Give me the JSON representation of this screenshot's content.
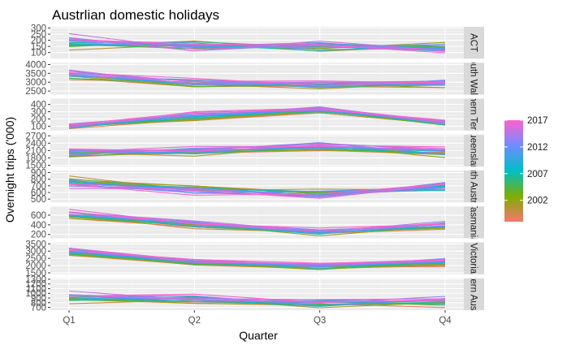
{
  "chart_data": {
    "type": "line",
    "title": "Austrlian domestic holidays",
    "xlabel": "Quarter",
    "ylabel": "Overnight trips ('000)",
    "categories": [
      "Q1",
      "Q2",
      "Q3",
      "Q4"
    ],
    "facet_scales": "free_y",
    "grid": true,
    "legend": {
      "placement": "right",
      "type": "colorbar",
      "ticks": [
        2002,
        2007,
        2012,
        2017
      ],
      "range": [
        1998,
        2017
      ],
      "colors": [
        "#f8766d",
        "#7cae00",
        "#00bfc4",
        "#6f8cff",
        "#ff61cc"
      ]
    },
    "panels": [
      {
        "strip": "ACT",
        "ylim": [
          50,
          310
        ],
        "yticks": [
          100,
          150,
          200,
          250,
          300
        ],
        "base": [
          175,
          155,
          150,
          140
        ],
        "drift": [
          80,
          -20,
          20,
          -30
        ],
        "spread": 40
      },
      {
        "strip": "South Wales",
        "ylim": [
          2300,
          4100
        ],
        "yticks": [
          2500,
          3000,
          3500,
          4000
        ],
        "base": [
          3400,
          2900,
          2850,
          2900
        ],
        "drift": [
          300,
          250,
          200,
          200
        ],
        "spread": 200
      },
      {
        "strip": "Northern Territory",
        "ylim": [
          40,
          480
        ],
        "yticks": [
          100,
          200,
          300,
          400
        ],
        "base": [
          100,
          220,
          320,
          140
        ],
        "drift": [
          20,
          100,
          60,
          40
        ],
        "spread": 30
      },
      {
        "strip": "Queensland",
        "ylim": [
          1450,
          2750
        ],
        "yticks": [
          1500,
          1800,
          2100,
          2400,
          2700
        ],
        "base": [
          2000,
          2050,
          2250,
          2000
        ],
        "drift": [
          150,
          150,
          200,
          250
        ],
        "spread": 150
      },
      {
        "strip": "South Australia",
        "ylim": [
          450,
          930
        ],
        "yticks": [
          500,
          600,
          700,
          800,
          900
        ],
        "base": [
          760,
          650,
          580,
          680
        ],
        "drift": [
          -100,
          -60,
          -60,
          60
        ],
        "spread": 60
      },
      {
        "strip": "Tasmania",
        "ylim": [
          120,
          780
        ],
        "yticks": [
          200,
          400,
          600
        ],
        "base": [
          600,
          400,
          240,
          380
        ],
        "drift": [
          120,
          100,
          60,
          100
        ],
        "spread": 60
      },
      {
        "strip": "Victoria",
        "ylim": [
          1400,
          3600
        ],
        "yticks": [
          1500,
          2000,
          2500,
          3000,
          3500
        ],
        "base": [
          2900,
          2200,
          1900,
          2200
        ],
        "drift": [
          400,
          300,
          300,
          400
        ],
        "spread": 150
      },
      {
        "strip": "Western Australia",
        "ylim": [
          640,
          1320
        ],
        "yticks": [
          700,
          800,
          900,
          1000,
          1100,
          1200,
          1300
        ],
        "base": [
          900,
          850,
          780,
          820
        ],
        "drift": [
          150,
          100,
          80,
          120
        ],
        "spread": 80
      }
    ]
  }
}
